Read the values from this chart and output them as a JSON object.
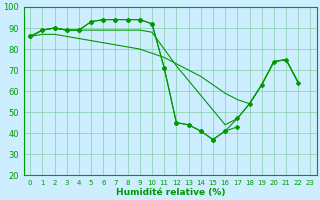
{
  "xlabel": "Humidité relative (%)",
  "bg_color": "#cceeff",
  "grid_color": "#88ccaa",
  "line_color": "#009900",
  "xlim": [
    -0.5,
    23.5
  ],
  "ylim": [
    20,
    100
  ],
  "yticks": [
    20,
    30,
    40,
    50,
    60,
    70,
    80,
    90,
    100
  ],
  "xticks": [
    0,
    1,
    2,
    3,
    4,
    5,
    6,
    7,
    8,
    9,
    10,
    11,
    12,
    13,
    14,
    15,
    16,
    17,
    18,
    19,
    20,
    21,
    22,
    23
  ],
  "series": [
    {
      "y": [
        86,
        89,
        90,
        89,
        89,
        93,
        94,
        94,
        94,
        94,
        92,
        71,
        45,
        44,
        41,
        37,
        41,
        43,
        null,
        null,
        null,
        null,
        null,
        null
      ],
      "marker": true
    },
    {
      "y": [
        86,
        89,
        90,
        89,
        89,
        93,
        94,
        94,
        94,
        94,
        92,
        71,
        45,
        44,
        41,
        37,
        41,
        47,
        54,
        63,
        74,
        75,
        64,
        null
      ],
      "marker": true
    },
    {
      "y": [
        86,
        89,
        90,
        89,
        89,
        89,
        89,
        89,
        89,
        89,
        88,
        80,
        72,
        65,
        58,
        51,
        44,
        47,
        54,
        63,
        74,
        75,
        64,
        null
      ],
      "marker": false
    },
    {
      "y": [
        86,
        87,
        87,
        86,
        85,
        84,
        83,
        82,
        81,
        80,
        78,
        76,
        73,
        70,
        67,
        63,
        59,
        56,
        54,
        63,
        74,
        75,
        64,
        null
      ],
      "marker": false
    }
  ]
}
